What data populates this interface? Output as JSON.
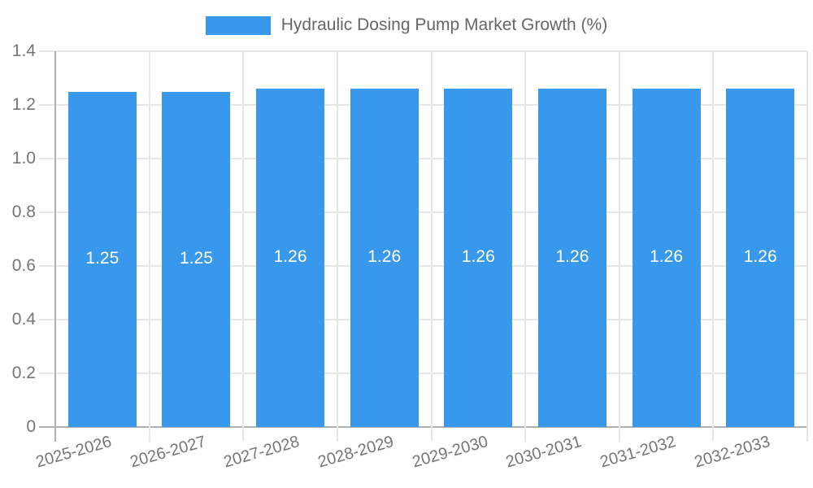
{
  "chart_data": {
    "type": "bar",
    "title": "Hydraulic Dosing Pump Market Growth (%)",
    "legend_position": "top",
    "categories": [
      "2025-2026",
      "2026-2027",
      "2027-2028",
      "2028-2029",
      "2029-2030",
      "2030-2031",
      "2031-2032",
      "2032-2033"
    ],
    "series": [
      {
        "name": "Hydraulic Dosing Pump Market Growth (%)",
        "values": [
          1.25,
          1.25,
          1.26,
          1.26,
          1.26,
          1.26,
          1.26,
          1.26
        ],
        "value_labels": [
          "1.25",
          "1.25",
          "1.26",
          "1.26",
          "1.26",
          "1.26",
          "1.26",
          "1.26"
        ]
      }
    ],
    "xlabel": "",
    "ylabel": "",
    "ylim": [
      0,
      1.4
    ],
    "ytick_step": 0.2,
    "ytick_labels": [
      "0",
      "0.2",
      "0.4",
      "0.6",
      "0.8",
      "1.0",
      "1.2",
      "1.4"
    ],
    "grid": true,
    "colors": {
      "bar": "#3898ec",
      "grid": "#e6e6e6",
      "axis": "#b0b0b0",
      "tick_label": "#757575",
      "legend_text": "#666666",
      "bar_value_label": "#ffffff",
      "background": "#ffffff"
    }
  }
}
